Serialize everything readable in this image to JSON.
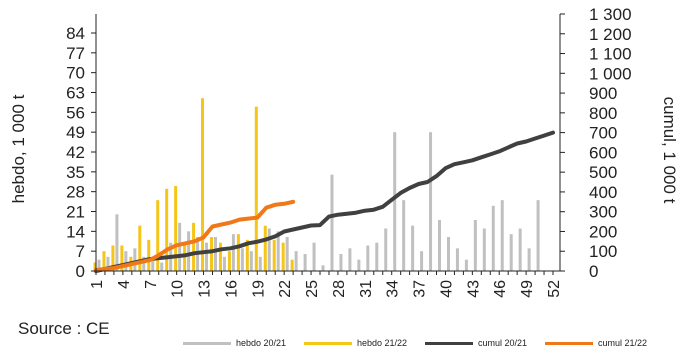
{
  "chart_data": {
    "type": "bar+line",
    "source": "Source : CE",
    "y_left": {
      "label": "hebdo, 1 000 t",
      "range": [
        0,
        84
      ],
      "ticks": [
        0,
        7,
        14,
        21,
        28,
        35,
        42,
        49,
        56,
        63,
        70,
        77,
        84
      ]
    },
    "y_right": {
      "label": "cumul, 1 000 t",
      "range": [
        0,
        1300
      ],
      "ticks": [
        0,
        100,
        200,
        300,
        400,
        500,
        600,
        700,
        800,
        900,
        1000,
        1100,
        1200,
        1300
      ],
      "tick_labels": [
        "0",
        "100",
        "200",
        "300",
        "400",
        "500",
        "600",
        "700",
        "800",
        "900",
        "1 000",
        "1 100",
        "1 200",
        "1 300"
      ]
    },
    "x": {
      "range": [
        1,
        52
      ],
      "ticks": [
        1,
        4,
        7,
        10,
        13,
        16,
        19,
        22,
        25,
        28,
        31,
        34,
        37,
        40,
        43,
        46,
        49,
        52
      ]
    },
    "legend_position": "bottom-right",
    "grid": false,
    "series": [
      {
        "name": "hebdo 20/21",
        "type": "bar",
        "axis": "left",
        "color": "#c0c0c0",
        "values": [
          4,
          5,
          20,
          7,
          8,
          5,
          4,
          3,
          10,
          17,
          14,
          12,
          10,
          12,
          5,
          13,
          8,
          7,
          5,
          15,
          14,
          12,
          7,
          6,
          10,
          2,
          34,
          6,
          8,
          4,
          9,
          10,
          15,
          49,
          25,
          16,
          7,
          49,
          18,
          12,
          8,
          4,
          18,
          15,
          23,
          25,
          13,
          15,
          8,
          25,
          0,
          0
        ]
      },
      {
        "name": "hebdo 21/22",
        "type": "bar",
        "axis": "left",
        "color": "#f5c518",
        "values": [
          3,
          7,
          9,
          9,
          5,
          16,
          11,
          25,
          29,
          30,
          10,
          17,
          61,
          12,
          10,
          7,
          13,
          11,
          58,
          16,
          11,
          10,
          4
        ]
      },
      {
        "name": "cumul 20/21",
        "type": "line",
        "axis": "right",
        "color": "#404040",
        "values": [
          0,
          10,
          20,
          30,
          40,
          50,
          60,
          65,
          70,
          75,
          80,
          90,
          95,
          100,
          110,
          115,
          125,
          140,
          148,
          160,
          175,
          200,
          210,
          220,
          230,
          232,
          275,
          285,
          290,
          295,
          305,
          310,
          325,
          360,
          395,
          420,
          440,
          450,
          480,
          520,
          540,
          550,
          560,
          575,
          590,
          605,
          625,
          645,
          655,
          670,
          685,
          700
        ]
      },
      {
        "name": "cumul 21/22",
        "type": "line",
        "axis": "right",
        "color": "#f07818",
        "values": [
          5,
          10,
          15,
          25,
          35,
          45,
          55,
          80,
          110,
          130,
          140,
          150,
          170,
          225,
          235,
          245,
          260,
          265,
          270,
          320,
          335,
          340,
          350
        ]
      }
    ]
  }
}
